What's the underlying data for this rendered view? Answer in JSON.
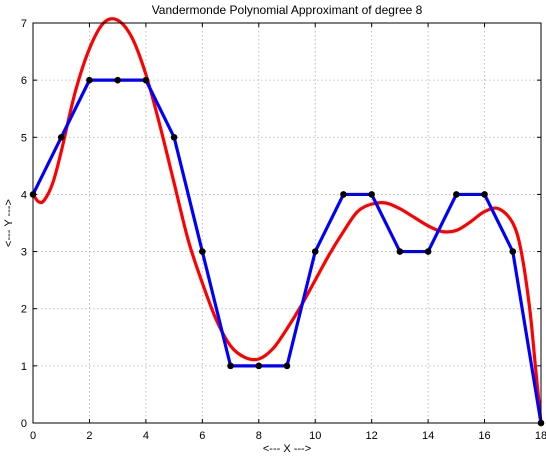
{
  "chart_data": {
    "type": "line",
    "title": "Vandermonde Polynomial Approximant of degree 8",
    "xlabel": "<--- X --->",
    "ylabel": "<--- Y --->",
    "xlim": [
      0,
      18
    ],
    "ylim": [
      0,
      7
    ],
    "xticks": [
      0,
      2,
      4,
      6,
      8,
      10,
      12,
      14,
      16,
      18
    ],
    "yticks": [
      0,
      1,
      2,
      3,
      4,
      5,
      6,
      7
    ],
    "grid": true,
    "series": [
      {
        "color": "#ff0000",
        "style": "smooth-line",
        "x": [
          0,
          0.2,
          0.4,
          0.7,
          1,
          1.5,
          2,
          2.5,
          3,
          3.5,
          4,
          4.5,
          5,
          5.5,
          6,
          6.5,
          7,
          7.5,
          8,
          8.5,
          9,
          9.5,
          10,
          10.5,
          11,
          11.5,
          12,
          12.5,
          13,
          13.5,
          14,
          14.5,
          15,
          15.5,
          16,
          16.5,
          17,
          17.3,
          17.6,
          17.8,
          18
        ],
        "y": [
          4.0,
          3.87,
          3.9,
          4.2,
          4.75,
          5.8,
          6.55,
          7.0,
          7.05,
          6.75,
          6.1,
          5.2,
          4.2,
          3.2,
          2.45,
          1.8,
          1.35,
          1.15,
          1.12,
          1.3,
          1.65,
          2.05,
          2.5,
          2.95,
          3.35,
          3.7,
          3.83,
          3.85,
          3.75,
          3.6,
          3.45,
          3.35,
          3.37,
          3.52,
          3.7,
          3.75,
          3.5,
          3.0,
          2.0,
          1.0,
          0.0
        ]
      },
      {
        "color": "#0000ff",
        "style": "line-with-markers",
        "x": [
          0,
          1,
          2,
          3,
          4,
          5,
          6,
          7,
          8,
          9,
          10,
          11,
          12,
          13,
          14,
          15,
          16,
          17,
          18
        ],
        "y": [
          4,
          5,
          6,
          6,
          6,
          5,
          3,
          1,
          1,
          1,
          3,
          4,
          4,
          3,
          3,
          4,
          4,
          3,
          0
        ]
      }
    ]
  }
}
